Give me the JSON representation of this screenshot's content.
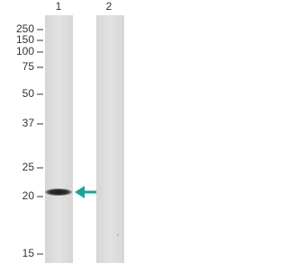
{
  "lanes": [
    "1",
    "2"
  ],
  "markers": [
    250,
    150,
    100,
    75,
    50,
    37,
    25,
    20,
    15
  ]
}
